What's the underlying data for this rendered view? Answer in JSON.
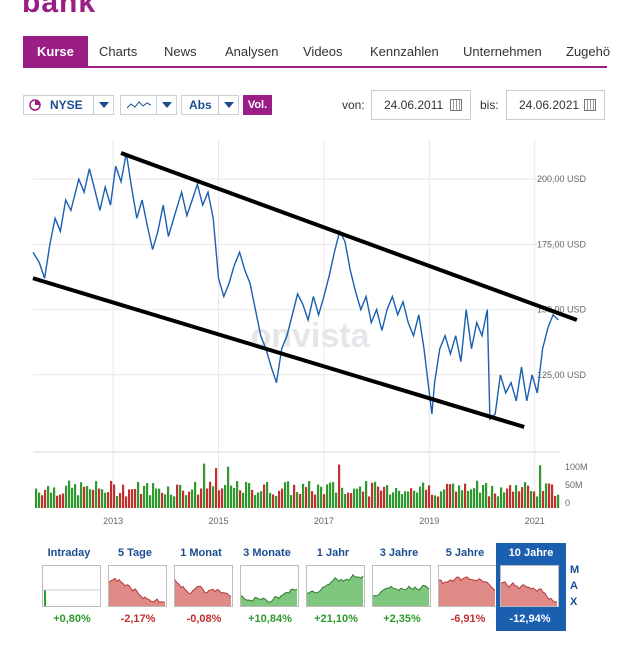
{
  "logo": "bank",
  "tabs": [
    {
      "label": "Kurse",
      "active": true
    },
    {
      "label": "Charts"
    },
    {
      "label": "News"
    },
    {
      "label": "Analysen"
    },
    {
      "label": "Videos"
    },
    {
      "label": "Kennzahlen"
    },
    {
      "label": "Unternehmen"
    },
    {
      "label": "Zugehö"
    }
  ],
  "controls": {
    "exchange": "NYSE",
    "chart_type_icon": "line-chart-icon",
    "scale": "Abs",
    "volume_button": "Vol.",
    "from_label": "von:",
    "from_date": "24.06.2011",
    "to_label": "bis:",
    "to_date": "24.06.2021"
  },
  "watermark": "onvista",
  "chart_data": {
    "type": "line",
    "x_ticks": [
      "2013",
      "2015",
      "2017",
      "2019",
      "2021"
    ],
    "y_ticks": [
      "200,00 USD",
      "175,00 USD",
      "150,00 USD",
      "125,00 USD"
    ],
    "ylim": [
      100,
      215
    ],
    "xlim": [
      2011.48,
      2021.48
    ],
    "series": [
      {
        "values": [
          [
            2011.48,
            172
          ],
          [
            2011.6,
            168
          ],
          [
            2011.7,
            162
          ],
          [
            2011.8,
            175
          ],
          [
            2011.9,
            185
          ],
          [
            2012.0,
            180
          ],
          [
            2012.1,
            192
          ],
          [
            2012.2,
            188
          ],
          [
            2012.35,
            200
          ],
          [
            2012.45,
            195
          ],
          [
            2012.55,
            204
          ],
          [
            2012.65,
            196
          ],
          [
            2012.75,
            188
          ],
          [
            2012.85,
            197
          ],
          [
            2012.95,
            190
          ],
          [
            2013.05,
            205
          ],
          [
            2013.15,
            199
          ],
          [
            2013.25,
            210
          ],
          [
            2013.35,
            197
          ],
          [
            2013.45,
            185
          ],
          [
            2013.55,
            192
          ],
          [
            2013.65,
            182
          ],
          [
            2013.75,
            173
          ],
          [
            2013.85,
            180
          ],
          [
            2013.95,
            190
          ],
          [
            2014.05,
            178
          ],
          [
            2014.15,
            185
          ],
          [
            2014.3,
            195
          ],
          [
            2014.4,
            186
          ],
          [
            2014.5,
            192
          ],
          [
            2014.6,
            198
          ],
          [
            2014.7,
            190
          ],
          [
            2014.8,
            195
          ],
          [
            2014.9,
            185
          ],
          [
            2015.0,
            162
          ],
          [
            2015.1,
            155
          ],
          [
            2015.2,
            160
          ],
          [
            2015.3,
            167
          ],
          [
            2015.4,
            172
          ],
          [
            2015.5,
            165
          ],
          [
            2015.6,
            160
          ],
          [
            2015.7,
            150
          ],
          [
            2015.8,
            140
          ],
          [
            2015.9,
            135
          ],
          [
            2016.0,
            128
          ],
          [
            2016.1,
            122
          ],
          [
            2016.2,
            135
          ],
          [
            2016.3,
            140
          ],
          [
            2016.4,
            148
          ],
          [
            2016.5,
            156
          ],
          [
            2016.6,
            152
          ],
          [
            2016.7,
            146
          ],
          [
            2016.8,
            155
          ],
          [
            2016.9,
            148
          ],
          [
            2017.0,
            155
          ],
          [
            2017.1,
            163
          ],
          [
            2017.2,
            172
          ],
          [
            2017.3,
            180
          ],
          [
            2017.4,
            176
          ],
          [
            2017.5,
            165
          ],
          [
            2017.6,
            157
          ],
          [
            2017.7,
            150
          ],
          [
            2017.8,
            155
          ],
          [
            2017.9,
            145
          ],
          [
            2018.0,
            150
          ],
          [
            2018.1,
            142
          ],
          [
            2018.2,
            150
          ],
          [
            2018.3,
            155
          ],
          [
            2018.4,
            148
          ],
          [
            2018.5,
            153
          ],
          [
            2018.6,
            145
          ],
          [
            2018.7,
            140
          ],
          [
            2018.8,
            148
          ],
          [
            2018.9,
            135
          ],
          [
            2019.0,
            118
          ],
          [
            2019.05,
            110
          ],
          [
            2019.1,
            122
          ],
          [
            2019.2,
            135
          ],
          [
            2019.3,
            140
          ],
          [
            2019.4,
            133
          ],
          [
            2019.5,
            140
          ],
          [
            2019.6,
            130
          ],
          [
            2019.7,
            150
          ],
          [
            2019.8,
            135
          ],
          [
            2019.9,
            145
          ],
          [
            2020.0,
            140
          ],
          [
            2020.1,
            150
          ],
          [
            2020.15,
            108
          ],
          [
            2020.25,
            110
          ],
          [
            2020.35,
            125
          ],
          [
            2020.45,
            118
          ],
          [
            2020.55,
            122
          ],
          [
            2020.65,
            115
          ],
          [
            2020.75,
            128
          ],
          [
            2020.85,
            115
          ],
          [
            2020.95,
            125
          ],
          [
            2021.05,
            118
          ],
          [
            2021.15,
            135
          ],
          [
            2021.25,
            143
          ],
          [
            2021.35,
            148
          ],
          [
            2021.45,
            146
          ]
        ]
      }
    ],
    "trend_lines": [
      {
        "from": [
          2013.15,
          210
        ],
        "to": [
          2021.8,
          146
        ]
      },
      {
        "from": [
          2011.48,
          162
        ],
        "to": [
          2020.8,
          105
        ]
      }
    ],
    "volume": {
      "y_ticks": [
        "100M",
        "50M",
        "0"
      ],
      "ylim": [
        0,
        110
      ]
    }
  },
  "periods": [
    {
      "label": "Intraday",
      "change": "+0,80%",
      "trend": "up"
    },
    {
      "label": "5 Tage",
      "change": "-2,17%",
      "trend": "down"
    },
    {
      "label": "1 Monat",
      "change": "-0,08%",
      "trend": "down"
    },
    {
      "label": "3 Monate",
      "change": "+10,84%",
      "trend": "up"
    },
    {
      "label": "1 Jahr",
      "change": "+21,10%",
      "trend": "up"
    },
    {
      "label": "3 Jahre",
      "change": "+2,35%",
      "trend": "up"
    },
    {
      "label": "5 Jahre",
      "change": "-6,91%",
      "trend": "down"
    },
    {
      "label": "10 Jahre",
      "change": "-12,94%",
      "trend": "down",
      "selected": true
    }
  ],
  "max_label": [
    "M",
    "A",
    "X"
  ],
  "colors": {
    "brand": "#9b1d86",
    "line": "#1a5fb0",
    "up": "#2e9a2e",
    "down": "#c0302f",
    "selected": "#1a5fb0"
  }
}
